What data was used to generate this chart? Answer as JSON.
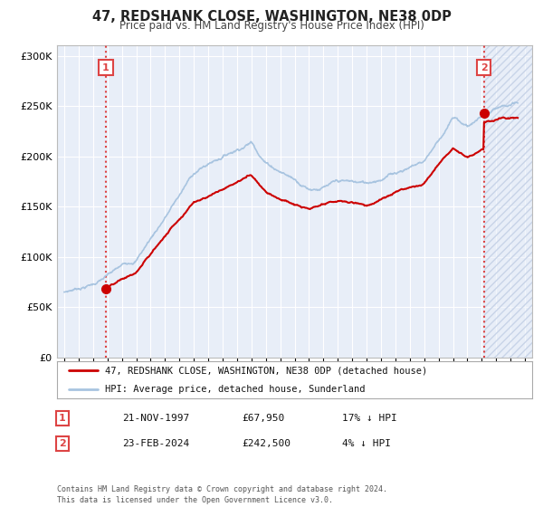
{
  "title": "47, REDSHANK CLOSE, WASHINGTON, NE38 0DP",
  "subtitle": "Price paid vs. HM Land Registry's House Price Index (HPI)",
  "hpi_color": "#a8c4e0",
  "price_color": "#cc0000",
  "marker_color": "#cc0000",
  "bg_color": "#ffffff",
  "plot_bg_color": "#e8eef8",
  "grid_color": "#ffffff",
  "hatch_color": "#c8d4e8",
  "ylim": [
    0,
    310000
  ],
  "yticks": [
    0,
    50000,
    100000,
    150000,
    200000,
    250000,
    300000
  ],
  "xlim_start": 1994.5,
  "xlim_end": 2027.5,
  "xticks": [
    1995,
    1996,
    1997,
    1998,
    1999,
    2000,
    2001,
    2002,
    2003,
    2004,
    2005,
    2006,
    2007,
    2008,
    2009,
    2010,
    2011,
    2012,
    2013,
    2014,
    2015,
    2016,
    2017,
    2018,
    2019,
    2020,
    2021,
    2022,
    2023,
    2024,
    2025,
    2026,
    2027
  ],
  "sale1_x": 1997.89,
  "sale1_y": 67950,
  "sale2_x": 2024.14,
  "sale2_y": 242500,
  "legend_label1": "47, REDSHANK CLOSE, WASHINGTON, NE38 0DP (detached house)",
  "legend_label2": "HPI: Average price, detached house, Sunderland",
  "table_row1": [
    "1",
    "21-NOV-1997",
    "£67,950",
    "17% ↓ HPI"
  ],
  "table_row2": [
    "2",
    "23-FEB-2024",
    "£242,500",
    "4% ↓ HPI"
  ],
  "footer": "Contains HM Land Registry data © Crown copyright and database right 2024.\nThis data is licensed under the Open Government Licence v3.0.",
  "vline_color": "#dd4444"
}
